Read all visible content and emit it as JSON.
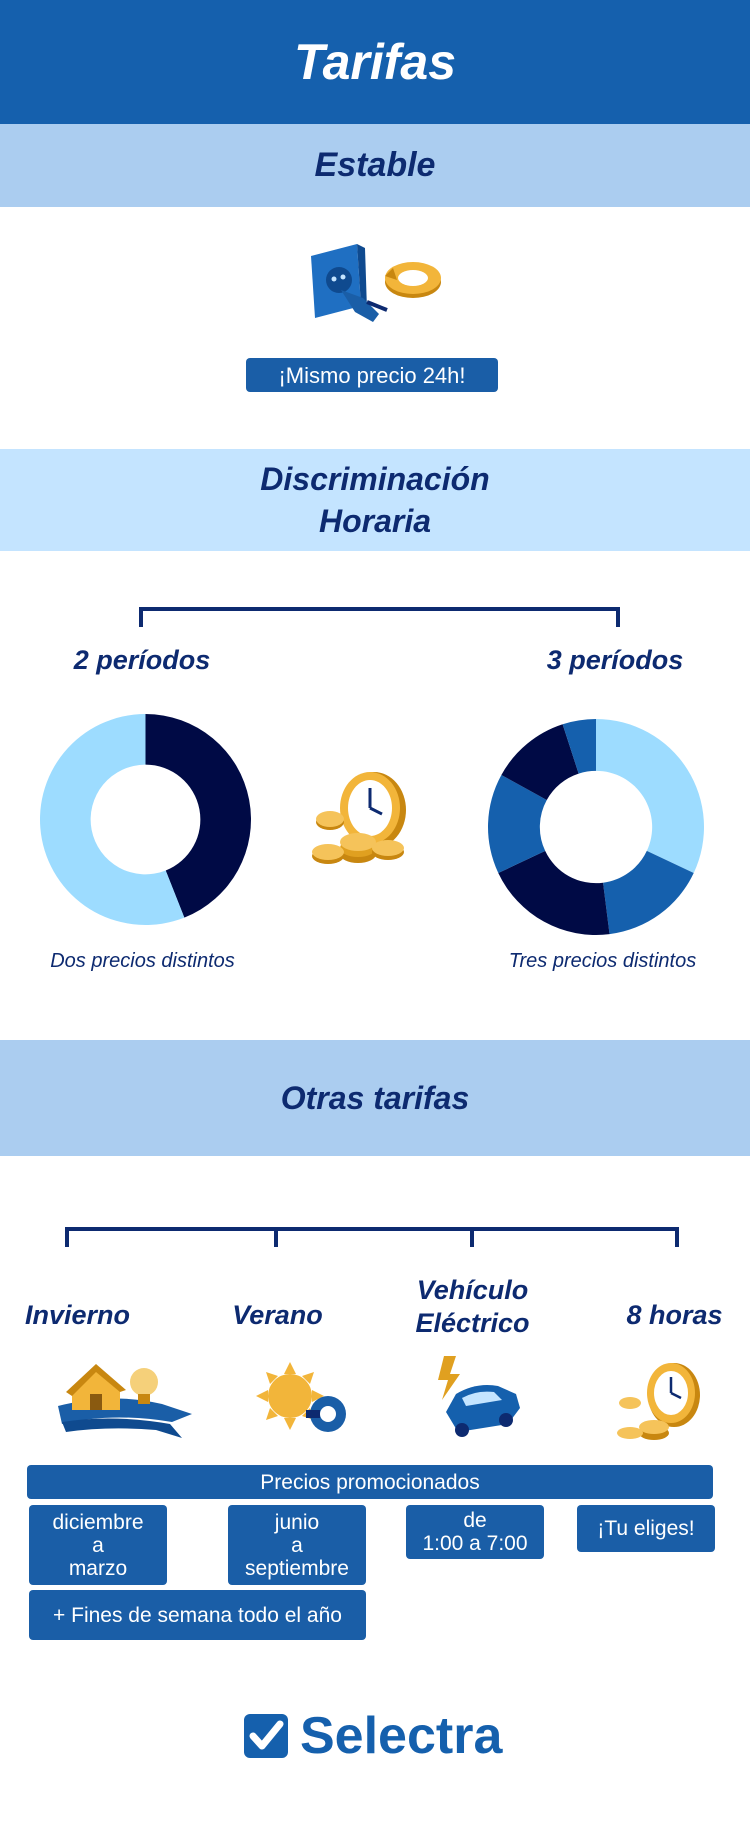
{
  "header": {
    "title": "Tarifas"
  },
  "estable": {
    "title": "Estable",
    "icon": "plug-socket-icon",
    "badge": "¡Mismo precio 24h!"
  },
  "discriminacion": {
    "title_line1": "Discriminación",
    "title_line2": "Horaria",
    "left": {
      "label": "2 períodos",
      "caption": "Dos precios distintos"
    },
    "right": {
      "label": "3 períodos",
      "caption": "Tres precios distintos"
    },
    "center_icon": "coins-clock-icon"
  },
  "chart_data": [
    {
      "type": "pie",
      "donut": true,
      "slices": [
        {
          "value": 44,
          "color": "#000a45"
        },
        {
          "value": 56,
          "color": "#9ddcff"
        }
      ]
    },
    {
      "type": "pie",
      "donut": true,
      "slices": [
        {
          "value": 32,
          "color": "#9ddcff"
        },
        {
          "value": 16,
          "color": "#1560ad"
        },
        {
          "value": 20,
          "color": "#000a45"
        },
        {
          "value": 15,
          "color": "#1560ad"
        },
        {
          "value": 12,
          "color": "#000a45"
        },
        {
          "value": 5,
          "color": "#1560ad"
        }
      ]
    }
  ],
  "otras": {
    "title": "Otras tarifas",
    "columns": [
      {
        "label": "Invierno",
        "icon": "house-scarf-icon"
      },
      {
        "label": "Verano",
        "icon": "sun-fan-icon"
      },
      {
        "label": "Vehículo\nEléctrico",
        "icon": "electric-car-icon"
      },
      {
        "label": "8 horas",
        "icon": "coins-clock-icon"
      }
    ],
    "promo_banner": "Precios promocionados",
    "boxes": [
      "diciembre\na\nmarzo",
      "junio\na\nseptiembre",
      "de\n1:00 a 7:00",
      "¡Tu eliges!"
    ],
    "extra": "+ Fines de semana todo el año"
  },
  "footer": {
    "brand": "Selectra",
    "logo_icon": "checkmark-icon"
  },
  "colors": {
    "dark_blue": "#0d2a70",
    "brand_blue": "#1560ad",
    "light_band": "#abcdf0",
    "lighter_band": "#c4e4ff",
    "gold": "#e0a020"
  }
}
